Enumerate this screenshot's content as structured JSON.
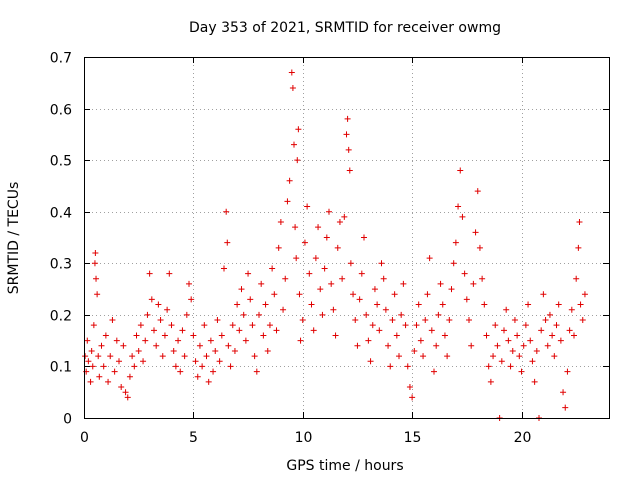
{
  "chart_data": {
    "type": "scatter",
    "title": "Day 353 of 2021, SRMTID for receiver owmg",
    "xlabel": "GPS time / hours",
    "ylabel": "SRMTID / TECUs",
    "xlim": [
      0,
      24
    ],
    "ylim": [
      0,
      0.7
    ],
    "xticks": [
      0,
      5,
      10,
      15,
      20
    ],
    "xtick_labels": [
      "0",
      "5",
      "10",
      "15",
      "20"
    ],
    "yticks": [
      0,
      0.1,
      0.2,
      0.3,
      0.4,
      0.5,
      0.6,
      0.7
    ],
    "ytick_labels": [
      "0",
      "0.1",
      "0.2",
      "0.3",
      "0.4",
      "0.5",
      "0.6",
      "0.7"
    ],
    "grid": true,
    "marker": "plus",
    "marker_color": "#e00000",
    "series": [
      {
        "name": "owmg",
        "points": [
          [
            0.05,
            0.12
          ],
          [
            0.1,
            0.09
          ],
          [
            0.15,
            0.15
          ],
          [
            0.2,
            0.11
          ],
          [
            0.3,
            0.07
          ],
          [
            0.35,
            0.13
          ],
          [
            0.4,
            0.1
          ],
          [
            0.45,
            0.18
          ],
          [
            0.5,
            0.3
          ],
          [
            0.52,
            0.32
          ],
          [
            0.55,
            0.27
          ],
          [
            0.6,
            0.24
          ],
          [
            0.65,
            0.12
          ],
          [
            0.7,
            0.08
          ],
          [
            0.8,
            0.14
          ],
          [
            0.9,
            0.1
          ],
          [
            1.0,
            0.16
          ],
          [
            1.1,
            0.07
          ],
          [
            1.2,
            0.12
          ],
          [
            1.3,
            0.19
          ],
          [
            1.4,
            0.09
          ],
          [
            1.5,
            0.15
          ],
          [
            1.6,
            0.11
          ],
          [
            1.7,
            0.06
          ],
          [
            1.8,
            0.14
          ],
          [
            1.9,
            0.05
          ],
          [
            2.0,
            0.04
          ],
          [
            2.1,
            0.08
          ],
          [
            2.2,
            0.12
          ],
          [
            2.3,
            0.1
          ],
          [
            2.4,
            0.16
          ],
          [
            2.5,
            0.13
          ],
          [
            2.6,
            0.18
          ],
          [
            2.7,
            0.11
          ],
          [
            2.8,
            0.15
          ],
          [
            2.9,
            0.2
          ],
          [
            3.0,
            0.28
          ],
          [
            3.1,
            0.23
          ],
          [
            3.2,
            0.17
          ],
          [
            3.3,
            0.14
          ],
          [
            3.4,
            0.22
          ],
          [
            3.5,
            0.19
          ],
          [
            3.6,
            0.12
          ],
          [
            3.7,
            0.16
          ],
          [
            3.8,
            0.21
          ],
          [
            3.9,
            0.28
          ],
          [
            4.0,
            0.18
          ],
          [
            4.1,
            0.13
          ],
          [
            4.2,
            0.1
          ],
          [
            4.3,
            0.15
          ],
          [
            4.4,
            0.09
          ],
          [
            4.5,
            0.17
          ],
          [
            4.6,
            0.12
          ],
          [
            4.7,
            0.2
          ],
          [
            4.8,
            0.26
          ],
          [
            4.9,
            0.23
          ],
          [
            5.0,
            0.16
          ],
          [
            5.1,
            0.11
          ],
          [
            5.2,
            0.08
          ],
          [
            5.3,
            0.14
          ],
          [
            5.4,
            0.1
          ],
          [
            5.5,
            0.18
          ],
          [
            5.6,
            0.12
          ],
          [
            5.7,
            0.07
          ],
          [
            5.8,
            0.15
          ],
          [
            5.9,
            0.09
          ],
          [
            6.0,
            0.13
          ],
          [
            6.1,
            0.19
          ],
          [
            6.2,
            0.11
          ],
          [
            6.3,
            0.16
          ],
          [
            6.4,
            0.29
          ],
          [
            6.5,
            0.4
          ],
          [
            6.55,
            0.34
          ],
          [
            6.6,
            0.14
          ],
          [
            6.7,
            0.1
          ],
          [
            6.8,
            0.18
          ],
          [
            6.9,
            0.13
          ],
          [
            7.0,
            0.22
          ],
          [
            7.1,
            0.17
          ],
          [
            7.2,
            0.25
          ],
          [
            7.3,
            0.2
          ],
          [
            7.4,
            0.15
          ],
          [
            7.5,
            0.28
          ],
          [
            7.6,
            0.23
          ],
          [
            7.7,
            0.18
          ],
          [
            7.8,
            0.12
          ],
          [
            7.9,
            0.09
          ],
          [
            8.0,
            0.2
          ],
          [
            8.1,
            0.26
          ],
          [
            8.2,
            0.16
          ],
          [
            8.3,
            0.22
          ],
          [
            8.4,
            0.13
          ],
          [
            8.5,
            0.18
          ],
          [
            8.6,
            0.29
          ],
          [
            8.7,
            0.24
          ],
          [
            8.8,
            0.17
          ],
          [
            8.9,
            0.33
          ],
          [
            9.0,
            0.38
          ],
          [
            9.1,
            0.21
          ],
          [
            9.2,
            0.27
          ],
          [
            9.3,
            0.42
          ],
          [
            9.4,
            0.46
          ],
          [
            9.5,
            0.67
          ],
          [
            9.55,
            0.64
          ],
          [
            9.6,
            0.53
          ],
          [
            9.65,
            0.37
          ],
          [
            9.7,
            0.31
          ],
          [
            9.75,
            0.5
          ],
          [
            9.8,
            0.56
          ],
          [
            9.85,
            0.24
          ],
          [
            9.9,
            0.15
          ],
          [
            10.0,
            0.19
          ],
          [
            10.1,
            0.34
          ],
          [
            10.2,
            0.41
          ],
          [
            10.3,
            0.28
          ],
          [
            10.4,
            0.22
          ],
          [
            10.5,
            0.17
          ],
          [
            10.6,
            0.31
          ],
          [
            10.7,
            0.37
          ],
          [
            10.8,
            0.25
          ],
          [
            10.9,
            0.2
          ],
          [
            11.0,
            0.29
          ],
          [
            11.1,
            0.35
          ],
          [
            11.2,
            0.4
          ],
          [
            11.3,
            0.26
          ],
          [
            11.4,
            0.21
          ],
          [
            11.5,
            0.16
          ],
          [
            11.6,
            0.33
          ],
          [
            11.7,
            0.38
          ],
          [
            11.8,
            0.27
          ],
          [
            11.9,
            0.39
          ],
          [
            12.0,
            0.55
          ],
          [
            12.05,
            0.58
          ],
          [
            12.1,
            0.52
          ],
          [
            12.15,
            0.48
          ],
          [
            12.2,
            0.3
          ],
          [
            12.3,
            0.24
          ],
          [
            12.4,
            0.19
          ],
          [
            12.5,
            0.14
          ],
          [
            12.6,
            0.23
          ],
          [
            12.7,
            0.28
          ],
          [
            12.8,
            0.35
          ],
          [
            12.9,
            0.2
          ],
          [
            13.0,
            0.15
          ],
          [
            13.1,
            0.11
          ],
          [
            13.2,
            0.18
          ],
          [
            13.3,
            0.25
          ],
          [
            13.4,
            0.22
          ],
          [
            13.5,
            0.17
          ],
          [
            13.6,
            0.3
          ],
          [
            13.7,
            0.27
          ],
          [
            13.8,
            0.21
          ],
          [
            13.9,
            0.14
          ],
          [
            14.0,
            0.1
          ],
          [
            14.1,
            0.19
          ],
          [
            14.2,
            0.24
          ],
          [
            14.3,
            0.16
          ],
          [
            14.4,
            0.12
          ],
          [
            14.5,
            0.2
          ],
          [
            14.6,
            0.26
          ],
          [
            14.7,
            0.18
          ],
          [
            14.8,
            0.1
          ],
          [
            14.9,
            0.06
          ],
          [
            15.0,
            0.04
          ],
          [
            15.1,
            0.13
          ],
          [
            15.2,
            0.18
          ],
          [
            15.3,
            0.22
          ],
          [
            15.4,
            0.15
          ],
          [
            15.5,
            0.12
          ],
          [
            15.6,
            0.19
          ],
          [
            15.7,
            0.24
          ],
          [
            15.8,
            0.31
          ],
          [
            15.9,
            0.17
          ],
          [
            16.0,
            0.09
          ],
          [
            16.1,
            0.14
          ],
          [
            16.2,
            0.2
          ],
          [
            16.3,
            0.26
          ],
          [
            16.4,
            0.22
          ],
          [
            16.5,
            0.16
          ],
          [
            16.6,
            0.12
          ],
          [
            16.7,
            0.19
          ],
          [
            16.8,
            0.25
          ],
          [
            16.9,
            0.3
          ],
          [
            17.0,
            0.34
          ],
          [
            17.1,
            0.41
          ],
          [
            17.2,
            0.48
          ],
          [
            17.3,
            0.39
          ],
          [
            17.4,
            0.28
          ],
          [
            17.5,
            0.23
          ],
          [
            17.6,
            0.19
          ],
          [
            17.7,
            0.14
          ],
          [
            17.8,
            0.26
          ],
          [
            17.9,
            0.36
          ],
          [
            18.0,
            0.44
          ],
          [
            18.1,
            0.33
          ],
          [
            18.2,
            0.27
          ],
          [
            18.3,
            0.22
          ],
          [
            18.4,
            0.16
          ],
          [
            18.5,
            0.1
          ],
          [
            18.6,
            0.07
          ],
          [
            18.7,
            0.12
          ],
          [
            18.8,
            0.18
          ],
          [
            18.9,
            0.14
          ],
          [
            19.0,
            0.0
          ],
          [
            19.1,
            0.11
          ],
          [
            19.2,
            0.17
          ],
          [
            19.3,
            0.21
          ],
          [
            19.4,
            0.15
          ],
          [
            19.5,
            0.1
          ],
          [
            19.6,
            0.13
          ],
          [
            19.7,
            0.19
          ],
          [
            19.8,
            0.16
          ],
          [
            19.9,
            0.12
          ],
          [
            20.0,
            0.09
          ],
          [
            20.1,
            0.14
          ],
          [
            20.2,
            0.18
          ],
          [
            20.3,
            0.22
          ],
          [
            20.4,
            0.15
          ],
          [
            20.5,
            0.11
          ],
          [
            20.6,
            0.07
          ],
          [
            20.7,
            0.13
          ],
          [
            20.8,
            0.0
          ],
          [
            20.9,
            0.17
          ],
          [
            21.0,
            0.24
          ],
          [
            21.1,
            0.19
          ],
          [
            21.2,
            0.14
          ],
          [
            21.3,
            0.2
          ],
          [
            21.4,
            0.16
          ],
          [
            21.5,
            0.12
          ],
          [
            21.6,
            0.18
          ],
          [
            21.7,
            0.22
          ],
          [
            21.8,
            0.15
          ],
          [
            21.9,
            0.05
          ],
          [
            22.0,
            0.02
          ],
          [
            22.1,
            0.09
          ],
          [
            22.2,
            0.17
          ],
          [
            22.3,
            0.21
          ],
          [
            22.4,
            0.16
          ],
          [
            22.5,
            0.27
          ],
          [
            22.6,
            0.33
          ],
          [
            22.65,
            0.38
          ],
          [
            22.7,
            0.22
          ],
          [
            22.8,
            0.19
          ],
          [
            22.9,
            0.24
          ]
        ]
      }
    ]
  }
}
